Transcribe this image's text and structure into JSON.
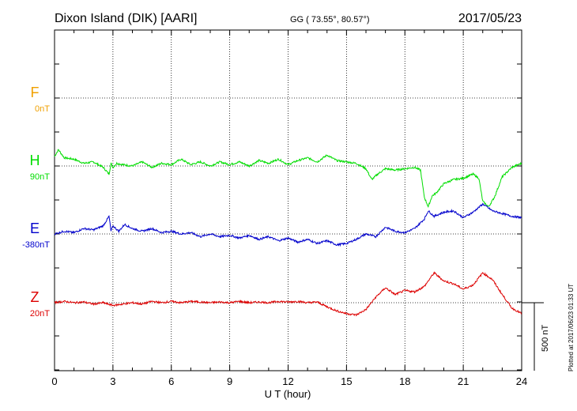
{
  "header": {
    "station": "Dixon Island (DIK)  [AARI]",
    "coords": "GG ( 73.55°,  80.57°)",
    "date": "2017/05/23"
  },
  "side_note": "Plotted at 2017/06/23 01:33 UT",
  "colors": {
    "F": "#f0a000",
    "H": "#00dd00",
    "E": "#0000cc",
    "Z": "#dd0000",
    "axis": "#000000"
  },
  "chart_data": {
    "type": "line",
    "title": "Dixon Island (DIK)  [AARI]",
    "xlabel": "U T (hour)",
    "ylabel": "",
    "xlim": [
      0,
      24
    ],
    "x_ticks": [
      0,
      3,
      6,
      9,
      12,
      15,
      18,
      21,
      24
    ],
    "x_tick_labels": [
      "0",
      "3",
      "6",
      "9",
      "12",
      "15",
      "18",
      "21",
      "24"
    ],
    "y_unit": "nT",
    "scale_bar": {
      "value": 500,
      "label": "500 nT"
    },
    "grid": true,
    "series": [
      {
        "name": "F",
        "baseline_label": "0nT",
        "baseline_nT": 0,
        "x": [],
        "y": []
      },
      {
        "name": "H",
        "baseline_label": "90nT",
        "baseline_nT": 90,
        "x": [
          0,
          0.2,
          0.5,
          1,
          1.5,
          2,
          2.5,
          2.8,
          2.9,
          3.0,
          3.2,
          3.5,
          4,
          4.5,
          5,
          5.5,
          6,
          6.5,
          7,
          7.5,
          8,
          8.5,
          9,
          9.5,
          10,
          10.5,
          11,
          11.5,
          12,
          12.5,
          13,
          13.5,
          14,
          14.5,
          15,
          15.5,
          16,
          16.3,
          16.6,
          17,
          17.5,
          18,
          18.5,
          18.8,
          19.0,
          19.2,
          19.4,
          19.6,
          20,
          20.5,
          21,
          21.5,
          21.8,
          22.0,
          22.3,
          22.6,
          23,
          23.5,
          24
        ],
        "y": [
          70,
          120,
          60,
          50,
          20,
          30,
          -10,
          -60,
          20,
          -10,
          20,
          10,
          0,
          30,
          -10,
          20,
          10,
          50,
          10,
          30,
          0,
          30,
          10,
          30,
          0,
          40,
          20,
          50,
          10,
          40,
          60,
          30,
          80,
          40,
          30,
          20,
          -20,
          -100,
          -60,
          -20,
          -30,
          -20,
          -10,
          -30,
          -230,
          -300,
          -220,
          -200,
          -130,
          -100,
          -90,
          -60,
          -90,
          -260,
          -300,
          -230,
          -80,
          -10,
          20
        ]
      },
      {
        "name": "E",
        "baseline_label": "-380nT",
        "baseline_nT": -380,
        "x": [
          0,
          0.5,
          1,
          1.5,
          2,
          2.5,
          2.8,
          2.9,
          3.0,
          3.3,
          3.6,
          4,
          4.5,
          5,
          5.5,
          6,
          6.5,
          7,
          7.5,
          8,
          8.5,
          9,
          9.5,
          10,
          10.5,
          11,
          11.5,
          12,
          12.5,
          13,
          13.5,
          14,
          14.5,
          15,
          15.5,
          16,
          16.5,
          17,
          17.5,
          18,
          18.5,
          19,
          19.2,
          19.5,
          20,
          20.5,
          21,
          21.5,
          22,
          22.5,
          23,
          23.5,
          24
        ],
        "y": [
          0,
          20,
          10,
          40,
          30,
          60,
          130,
          20,
          60,
          20,
          70,
          40,
          20,
          40,
          10,
          20,
          0,
          10,
          -20,
          0,
          -20,
          -10,
          -30,
          -10,
          -40,
          -20,
          -50,
          -30,
          -60,
          -40,
          -70,
          -50,
          -80,
          -70,
          -40,
          0,
          -20,
          50,
          20,
          10,
          40,
          110,
          170,
          130,
          160,
          170,
          120,
          160,
          220,
          170,
          150,
          130,
          120
        ]
      },
      {
        "name": "Z",
        "baseline_label": "20nT",
        "baseline_nT": 20,
        "x": [
          0,
          0.5,
          1,
          1.5,
          2,
          2.5,
          3,
          3.5,
          4,
          4.5,
          5,
          5.5,
          6,
          6.5,
          7,
          7.5,
          8,
          8.5,
          9,
          9.5,
          10,
          10.5,
          11,
          11.5,
          12,
          12.5,
          13,
          13.5,
          14,
          14.5,
          15,
          15.5,
          16,
          16.5,
          17,
          17.5,
          18,
          18.5,
          19,
          19.5,
          20,
          20.5,
          21,
          21.5,
          22,
          22.5,
          23,
          23.5,
          24
        ],
        "y": [
          0,
          10,
          0,
          5,
          -10,
          0,
          -20,
          -10,
          0,
          -10,
          10,
          0,
          10,
          0,
          10,
          5,
          0,
          5,
          0,
          10,
          0,
          5,
          0,
          10,
          5,
          10,
          0,
          5,
          -30,
          -60,
          -80,
          -90,
          -50,
          40,
          110,
          60,
          90,
          80,
          120,
          220,
          160,
          140,
          100,
          130,
          220,
          170,
          60,
          -40,
          -80
        ]
      }
    ]
  }
}
